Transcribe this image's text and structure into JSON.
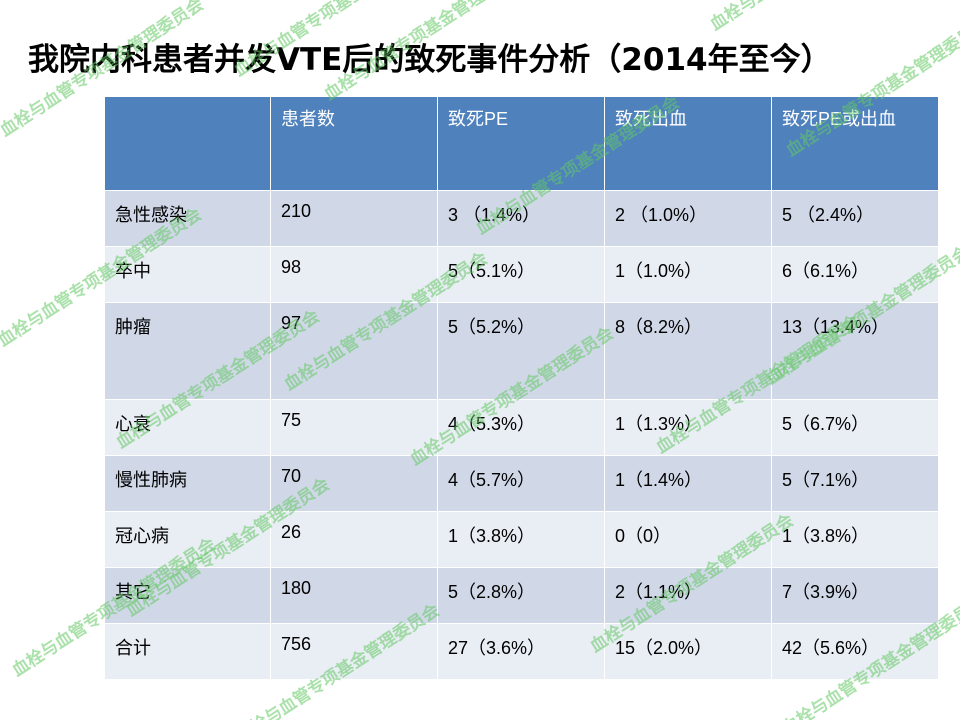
{
  "title": "我院内科患者并发VTE后的致死事件分析（2014年至今）",
  "table": {
    "headers": [
      "",
      "患者数",
      "致死PE",
      "致死出血",
      "致死PE或出血"
    ],
    "rows": [
      {
        "category": "急性感染",
        "patients": "210",
        "fatal_pe": "3 （1.4%）",
        "fatal_bleeding": "2 （1.0%）",
        "fatal_pe_or_bleeding": "5 （2.4%）"
      },
      {
        "category": "卒中",
        "patients": "98",
        "fatal_pe": "5（5.1%）",
        "fatal_bleeding": "1（1.0%）",
        "fatal_pe_or_bleeding": "6（6.1%）"
      },
      {
        "category": "肿瘤",
        "patients": "97",
        "fatal_pe": "5（5.2%）",
        "fatal_bleeding": "8（8.2%）",
        "fatal_pe_or_bleeding": "13（13.4%）"
      },
      {
        "category": "心衰",
        "patients": "75",
        "fatal_pe": "4（5.3%）",
        "fatal_bleeding": "1（1.3%）",
        "fatal_pe_or_bleeding": "5（6.7%）"
      },
      {
        "category": "慢性肺病",
        "patients": "70",
        "fatal_pe": "4（5.7%）",
        "fatal_bleeding": "1（1.4%）",
        "fatal_pe_or_bleeding": "5（7.1%）"
      },
      {
        "category": "冠心病",
        "patients": "26",
        "fatal_pe": "1（3.8%）",
        "fatal_bleeding": "0（0）",
        "fatal_pe_or_bleeding": "1（3.8%）"
      },
      {
        "category": "其它",
        "patients": "180",
        "fatal_pe": "5（2.8%）",
        "fatal_bleeding": "2（1.1%）",
        "fatal_pe_or_bleeding": "7（3.9%）"
      },
      {
        "category": "合计",
        "patients": "756",
        "fatal_pe": "27（3.6%）",
        "fatal_bleeding": "15（2.0%）",
        "fatal_pe_or_bleeding": "42（5.6%）"
      }
    ]
  },
  "watermark": {
    "text": "血栓与血管专项基金管理委员会"
  },
  "colors": {
    "header_bg": "#4f81bd",
    "row_dark": "#d0d8e8",
    "row_light": "#e9edf4",
    "watermark": "#64c864"
  }
}
